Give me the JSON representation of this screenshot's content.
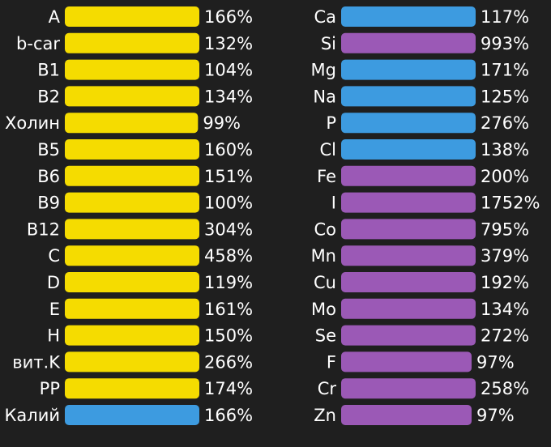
{
  "chart_data": [
    {
      "type": "bar",
      "title": "",
      "xlabel": "",
      "ylabel": "",
      "value_suffix": "%",
      "categories": [
        "A",
        "b-car",
        "B1",
        "B2",
        "Холин",
        "B5",
        "B6",
        "B9",
        "B12",
        "C",
        "D",
        "E",
        "H",
        "вит.K",
        "PP",
        "Калий"
      ],
      "values": [
        166,
        132,
        104,
        134,
        99,
        160,
        151,
        100,
        304,
        458,
        119,
        161,
        150,
        266,
        174,
        166
      ],
      "value_labels": [
        "166%",
        "132%",
        "104%",
        "134%",
        "99%",
        "160%",
        "151%",
        "100%",
        "304%",
        "458%",
        "119%",
        "161%",
        "150%",
        "266%",
        "174%",
        "166%"
      ],
      "colors": [
        "#f5dc00",
        "#f5dc00",
        "#f5dc00",
        "#f5dc00",
        "#f5dc00",
        "#f5dc00",
        "#f5dc00",
        "#f5dc00",
        "#f5dc00",
        "#f5dc00",
        "#f5dc00",
        "#f5dc00",
        "#f5dc00",
        "#f5dc00",
        "#f5dc00",
        "#3d9be0"
      ],
      "bar_cap_percent": 100
    },
    {
      "type": "bar",
      "title": "",
      "xlabel": "",
      "ylabel": "",
      "value_suffix": "%",
      "categories": [
        "Ca",
        "Si",
        "Mg",
        "Na",
        "P",
        "Cl",
        "Fe",
        "I",
        "Co",
        "Mn",
        "Cu",
        "Mo",
        "Se",
        "F",
        "Cr",
        "Zn"
      ],
      "values": [
        117,
        993,
        171,
        125,
        276,
        138,
        200,
        1752,
        795,
        379,
        192,
        134,
        272,
        97,
        258,
        97
      ],
      "value_labels": [
        "117%",
        "993%",
        "171%",
        "125%",
        "276%",
        "138%",
        "200%",
        "1752%",
        "795%",
        "379%",
        "192%",
        "134%",
        "272%",
        "97%",
        "258%",
        "97%"
      ],
      "colors": [
        "#3d9be0",
        "#9b59b6",
        "#3d9be0",
        "#3d9be0",
        "#3d9be0",
        "#3d9be0",
        "#9b59b6",
        "#9b59b6",
        "#9b59b6",
        "#9b59b6",
        "#9b59b6",
        "#9b59b6",
        "#9b59b6",
        "#9b59b6",
        "#9b59b6",
        "#9b59b6"
      ],
      "bar_cap_percent": 100
    }
  ]
}
